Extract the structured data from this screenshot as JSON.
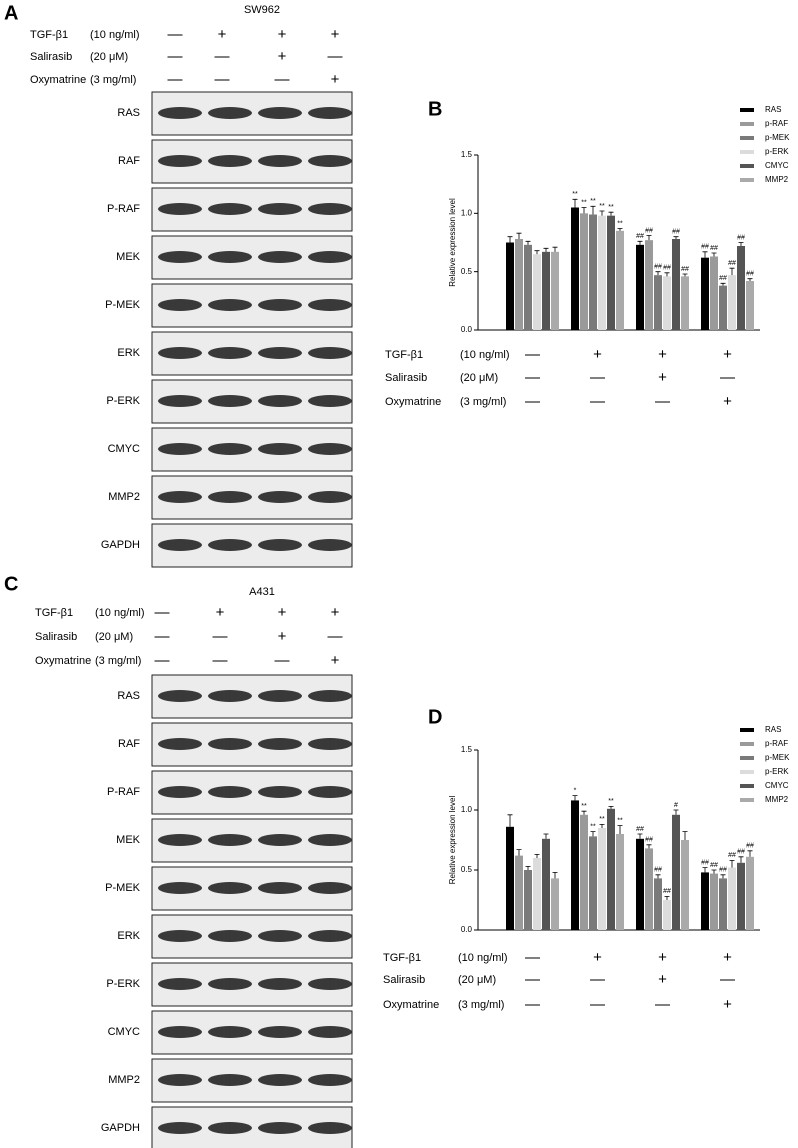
{
  "panels": [
    {
      "label": "A",
      "cell_line": "SW962",
      "treatments": [
        {
          "name": "TGF-β1",
          "dose": "(10 ng/ml)",
          "signs": [
            "—",
            "+",
            "+",
            "+"
          ]
        },
        {
          "name": "Salirasib",
          "dose": "(20 μM)",
          "signs": [
            "—",
            "—",
            "+",
            "—"
          ]
        },
        {
          "name": "Oxymatrine",
          "dose": "(3 mg/ml)",
          "signs": [
            "—",
            "—",
            "—",
            "+"
          ]
        }
      ],
      "blots": [
        "RAS",
        "RAF",
        "P-RAF",
        "MEK",
        "P-MEK",
        "ERK",
        "P-ERK",
        "CMYC",
        "MMP2",
        "GAPDH"
      ]
    },
    {
      "label": "C",
      "cell_line": "A431",
      "treatments": [
        {
          "name": "TGF-β1",
          "dose": "(10 ng/ml)",
          "signs": [
            "—",
            "+",
            "+",
            "+"
          ]
        },
        {
          "name": "Salirasib",
          "dose": "(20 μM)",
          "signs": [
            "—",
            "—",
            "+",
            "—"
          ]
        },
        {
          "name": "Oxymatrine",
          "dose": "(3 mg/ml)",
          "signs": [
            "—",
            "—",
            "—",
            "+"
          ]
        }
      ],
      "blots": [
        "RAS",
        "RAF",
        "P-RAF",
        "MEK",
        "P-MEK",
        "ERK",
        "P-ERK",
        "CMYC",
        "MMP2",
        "GAPDH"
      ]
    }
  ],
  "chart_data": [
    {
      "panel_label": "B",
      "type": "bar",
      "ylabel": "Relative expression level",
      "categories": [
        null,
        null,
        null,
        null
      ],
      "ylim": [
        0,
        1.5
      ],
      "yticks": [
        {
          "value": 0,
          "label": "0.0"
        },
        0.5,
        {
          "value": 1,
          "label": "1.0"
        },
        1.5
      ],
      "series": [
        {
          "name": "RAS",
          "color": "#000000",
          "values": [
            0.75,
            1.05,
            0.73,
            0.62
          ],
          "errors": [
            0.05,
            0.07,
            0.03,
            0.05
          ],
          "annotations": [
            null,
            "**",
            "##",
            "##"
          ]
        },
        {
          "name": "p-RAF",
          "color": "#9a9a9a",
          "values": [
            0.78,
            1.0,
            0.77,
            0.63
          ],
          "errors": [
            0.05,
            0.05,
            0.04,
            0.03
          ],
          "annotations": [
            null,
            "**",
            "##",
            "##"
          ]
        },
        {
          "name": "p-MEK",
          "color": "#7a7a7a",
          "values": [
            0.73,
            0.99,
            0.47,
            0.38
          ],
          "errors": [
            0.03,
            0.07,
            0.03,
            0.02
          ],
          "annotations": [
            null,
            "**",
            "##",
            "##"
          ]
        },
        {
          "name": "p-ERK",
          "color": "#dcdcdc",
          "values": [
            0.65,
            0.98,
            0.46,
            0.47
          ],
          "errors": [
            0.03,
            0.04,
            0.03,
            0.06
          ],
          "annotations": [
            null,
            "**",
            "##",
            "##"
          ]
        },
        {
          "name": "CMYC",
          "color": "#555555",
          "values": [
            0.67,
            0.98,
            0.78,
            0.72
          ],
          "errors": [
            0.03,
            0.03,
            0.02,
            0.03
          ],
          "annotations": [
            null,
            "**",
            "##",
            "##"
          ]
        },
        {
          "name": "MMP2",
          "color": "#aaaaaa",
          "values": [
            0.67,
            0.85,
            0.46,
            0.42
          ],
          "errors": [
            0.04,
            0.02,
            0.02,
            0.02
          ],
          "annotations": [
            null,
            "**",
            "##",
            "##"
          ]
        }
      ],
      "treatments": [
        {
          "name": "TGF-β1",
          "dose": "(10 ng/ml)",
          "signs": [
            "—",
            "+",
            "+",
            "+"
          ]
        },
        {
          "name": "Salirasib",
          "dose": "(20 μM)",
          "signs": [
            "—",
            "—",
            "+",
            "—"
          ]
        },
        {
          "name": "Oxymatrine",
          "dose": "(3 mg/ml)",
          "signs": [
            "—",
            "—",
            "—",
            "+"
          ]
        }
      ]
    },
    {
      "panel_label": "D",
      "type": "bar",
      "ylabel": "Relative expression level",
      "categories": [
        null,
        null,
        null,
        null
      ],
      "ylim": [
        0,
        1.5
      ],
      "yticks": [
        {
          "value": 0,
          "label": "0.0"
        },
        0.5,
        {
          "value": 1,
          "label": "1.0"
        },
        1.5
      ],
      "series": [
        {
          "name": "RAS",
          "color": "#000000",
          "values": [
            0.86,
            1.08,
            0.76,
            0.48
          ],
          "errors": [
            0.1,
            0.04,
            0.04,
            0.04
          ],
          "annotations": [
            null,
            "*",
            "##",
            "##"
          ]
        },
        {
          "name": "p-RAF",
          "color": "#9a9a9a",
          "values": [
            0.62,
            0.96,
            0.68,
            0.47
          ],
          "errors": [
            0.05,
            0.03,
            0.03,
            0.03
          ],
          "annotations": [
            null,
            "**",
            "##",
            "##"
          ]
        },
        {
          "name": "p-MEK",
          "color": "#7a7a7a",
          "values": [
            0.5,
            0.78,
            0.43,
            0.43
          ],
          "errors": [
            0.03,
            0.04,
            0.03,
            0.03
          ],
          "annotations": [
            null,
            "**",
            "##",
            "##"
          ]
        },
        {
          "name": "p-ERK",
          "color": "#dcdcdc",
          "values": [
            0.6,
            0.85,
            0.25,
            0.52
          ],
          "errors": [
            0.03,
            0.03,
            0.03,
            0.06
          ],
          "annotations": [
            null,
            "**",
            "##",
            "##"
          ]
        },
        {
          "name": "CMYC",
          "color": "#555555",
          "values": [
            0.76,
            1.01,
            0.96,
            0.56
          ],
          "errors": [
            0.04,
            0.02,
            0.04,
            0.05
          ],
          "annotations": [
            null,
            "**",
            "#",
            "##"
          ]
        },
        {
          "name": "MMP2",
          "color": "#aaaaaa",
          "values": [
            0.43,
            0.8,
            0.75,
            0.61
          ],
          "errors": [
            0.05,
            0.07,
            0.07,
            0.05
          ],
          "annotations": [
            null,
            "**",
            null,
            "##"
          ]
        }
      ],
      "treatments": [
        {
          "name": "TGF-β1",
          "dose": "(10 ng/ml)",
          "signs": [
            "—",
            "+",
            "+",
            "+"
          ]
        },
        {
          "name": "Salirasib",
          "dose": "(20 μM)",
          "signs": [
            "—",
            "—",
            "+",
            "—"
          ]
        },
        {
          "name": "Oxymatrine",
          "dose": "(3 mg/ml)",
          "signs": [
            "—",
            "—",
            "—",
            "+"
          ]
        }
      ]
    }
  ]
}
